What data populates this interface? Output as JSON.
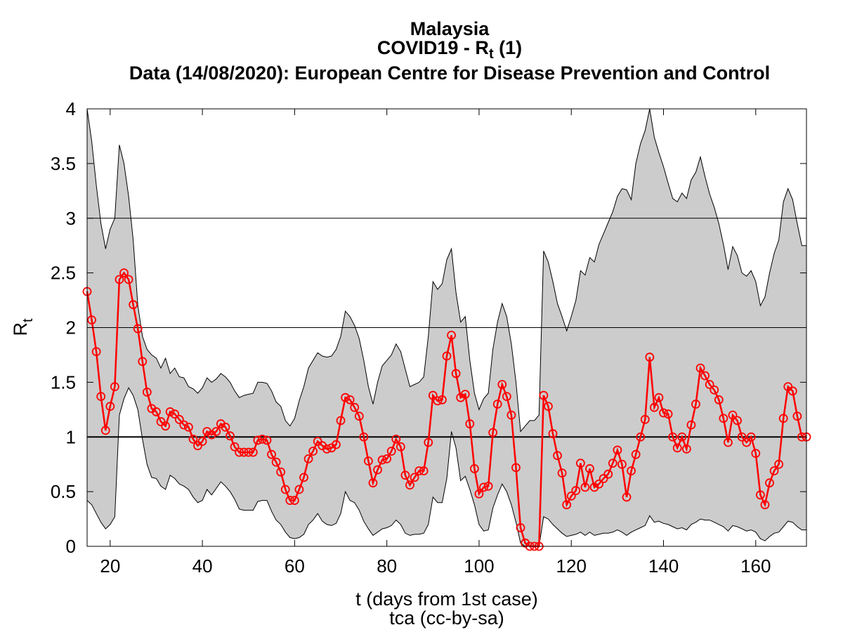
{
  "chart_data": {
    "type": "line",
    "title": "Malaysia",
    "subtitle_main": "COVID19 - R",
    "subtitle_sub": "t",
    "subtitle_tail": " (1)",
    "subtitle2": "Data (14/08/2020): European Centre for Disease Prevention and Control",
    "xlabel": "t (days from 1st case)",
    "ylabel_main": "R",
    "ylabel_sub": "t",
    "credit": "tca (cc-by-sa)",
    "xlim": [
      15,
      171
    ],
    "ylim": [
      0,
      4
    ],
    "xticks": [
      20,
      40,
      60,
      80,
      100,
      120,
      140,
      160
    ],
    "yticks": [
      0,
      0.5,
      1,
      1.5,
      2,
      2.5,
      3,
      3.5,
      4
    ],
    "ytick_labels": [
      "0",
      "0.5",
      "1",
      "1.5",
      "2",
      "2.5",
      "3",
      "3.5",
      "4"
    ],
    "hlines": [
      1,
      2,
      3
    ],
    "grid": false,
    "colors": {
      "series": "#ff0000",
      "band": "#cccccc",
      "axes": "#000000"
    },
    "x": [
      15,
      16,
      17,
      18,
      19,
      20,
      21,
      22,
      23,
      24,
      25,
      26,
      27,
      28,
      29,
      30,
      31,
      32,
      33,
      34,
      35,
      36,
      37,
      38,
      39,
      40,
      41,
      42,
      43,
      44,
      45,
      46,
      47,
      48,
      49,
      50,
      51,
      52,
      53,
      54,
      55,
      56,
      57,
      58,
      59,
      60,
      61,
      62,
      63,
      64,
      65,
      66,
      67,
      68,
      69,
      70,
      71,
      72,
      73,
      74,
      75,
      76,
      77,
      78,
      79,
      80,
      81,
      82,
      83,
      84,
      85,
      86,
      87,
      88,
      89,
      90,
      91,
      92,
      93,
      94,
      95,
      96,
      97,
      98,
      99,
      100,
      101,
      102,
      103,
      104,
      105,
      106,
      107,
      108,
      109,
      110,
      111,
      112,
      113,
      114,
      115,
      116,
      117,
      118,
      119,
      120,
      121,
      122,
      123,
      124,
      125,
      126,
      127,
      128,
      129,
      130,
      131,
      132,
      133,
      134,
      135,
      136,
      137,
      138,
      139,
      140,
      141,
      142,
      143,
      144,
      145,
      146,
      147,
      148,
      149,
      150,
      151,
      152,
      153,
      154,
      155,
      156,
      157,
      158,
      159,
      160,
      161,
      162,
      163,
      164,
      165,
      166,
      167,
      168,
      169,
      170,
      171
    ],
    "series": [
      {
        "values": [
          2.33,
          2.07,
          1.78,
          1.37,
          1.06,
          1.28,
          1.46,
          2.44,
          2.5,
          2.44,
          2.21,
          1.99,
          1.69,
          1.41,
          1.26,
          1.23,
          1.14,
          1.1,
          1.23,
          1.21,
          1.16,
          1.11,
          1.09,
          0.98,
          0.92,
          0.96,
          1.05,
          1.02,
          1.05,
          1.12,
          1.09,
          1.01,
          0.91,
          0.86,
          0.86,
          0.86,
          0.86,
          0.97,
          0.98,
          0.97,
          0.84,
          0.77,
          0.68,
          0.52,
          0.42,
          0.42,
          0.52,
          0.63,
          0.8,
          0.87,
          0.96,
          0.92,
          0.89,
          0.9,
          0.93,
          1.15,
          1.36,
          1.34,
          1.27,
          1.19,
          1.0,
          0.78,
          0.58,
          0.7,
          0.79,
          0.8,
          0.87,
          0.98,
          0.91,
          0.65,
          0.56,
          0.63,
          0.69,
          0.69,
          0.95,
          1.38,
          1.33,
          1.34,
          1.74,
          1.93,
          1.58,
          1.36,
          1.39,
          1.12,
          0.71,
          0.48,
          0.54,
          0.55,
          1.04,
          1.3,
          1.48,
          1.37,
          1.2,
          0.72,
          0.17,
          0.03,
          0.0,
          0.0,
          0.0,
          1.38,
          1.28,
          1.03,
          0.83,
          0.67,
          0.38,
          0.46,
          0.51,
          0.76,
          0.54,
          0.71,
          0.54,
          0.57,
          0.62,
          0.66,
          0.76,
          0.88,
          0.75,
          0.45,
          0.69,
          0.84,
          1.0,
          1.16,
          1.73,
          1.27,
          1.36,
          1.22,
          1.21,
          1.0,
          0.9,
          1.0,
          0.89,
          1.11,
          1.3,
          1.63,
          1.56,
          1.48,
          1.43,
          1.34,
          1.17,
          0.95,
          1.2,
          1.15,
          1.0,
          0.95,
          1.0,
          0.85,
          0.47,
          0.38,
          0.58,
          0.69,
          0.75,
          1.17,
          1.46,
          1.42,
          1.19,
          1.0,
          1.0
        ]
      }
    ],
    "band_upper": [
      4.0,
      3.7,
      3.3,
      2.95,
      2.72,
      2.9,
      3.0,
      3.67,
      3.5,
      3.2,
      2.8,
      2.2,
      1.92,
      1.8,
      1.75,
      1.72,
      1.63,
      1.72,
      1.58,
      1.63,
      1.55,
      1.54,
      1.46,
      1.44,
      1.4,
      1.45,
      1.54,
      1.5,
      1.53,
      1.58,
      1.55,
      1.5,
      1.42,
      1.36,
      1.38,
      1.39,
      1.4,
      1.5,
      1.5,
      1.49,
      1.42,
      1.32,
      1.28,
      1.15,
      1.1,
      1.17,
      1.33,
      1.46,
      1.63,
      1.7,
      1.77,
      1.74,
      1.73,
      1.74,
      1.8,
      1.92,
      2.15,
      2.1,
      2.02,
      1.9,
      1.7,
      1.46,
      1.3,
      1.5,
      1.65,
      1.7,
      1.75,
      1.85,
      1.78,
      1.62,
      1.46,
      1.48,
      1.5,
      1.55,
      1.92,
      2.42,
      2.35,
      2.4,
      2.62,
      2.72,
      2.32,
      2.05,
      2.1,
      1.7,
      1.4,
      1.25,
      1.35,
      1.4,
      1.8,
      2.05,
      2.22,
      2.1,
      1.85,
      1.5,
      1.05,
      1.1,
      1.15,
      1.15,
      1.2,
      2.7,
      2.6,
      2.42,
      2.22,
      2.1,
      1.97,
      2.1,
      2.25,
      2.52,
      2.48,
      2.64,
      2.6,
      2.76,
      2.86,
      2.96,
      3.06,
      3.2,
      3.27,
      3.26,
      3.17,
      3.5,
      3.68,
      3.8,
      4.0,
      3.74,
      3.6,
      3.47,
      3.32,
      3.18,
      3.15,
      3.23,
      3.18,
      3.35,
      3.42,
      3.56,
      3.38,
      3.22,
      3.1,
      2.95,
      2.76,
      2.53,
      2.74,
      2.66,
      2.5,
      2.47,
      2.52,
      2.42,
      2.2,
      2.28,
      2.5,
      2.68,
      2.8,
      3.15,
      3.27,
      3.17,
      2.95,
      2.75,
      2.75
    ],
    "band_lower": [
      0.42,
      0.38,
      0.3,
      0.22,
      0.16,
      0.2,
      0.27,
      1.2,
      1.35,
      1.45,
      1.38,
      1.25,
      0.98,
      0.75,
      0.63,
      0.62,
      0.55,
      0.52,
      0.65,
      0.62,
      0.57,
      0.55,
      0.52,
      0.45,
      0.4,
      0.42,
      0.52,
      0.47,
      0.53,
      0.59,
      0.55,
      0.5,
      0.43,
      0.34,
      0.33,
      0.33,
      0.33,
      0.41,
      0.42,
      0.42,
      0.32,
      0.24,
      0.2,
      0.13,
      0.08,
      0.07,
      0.08,
      0.11,
      0.2,
      0.24,
      0.3,
      0.23,
      0.2,
      0.19,
      0.21,
      0.3,
      0.5,
      0.42,
      0.4,
      0.33,
      0.23,
      0.16,
      0.1,
      0.13,
      0.16,
      0.17,
      0.19,
      0.24,
      0.2,
      0.12,
      0.1,
      0.11,
      0.11,
      0.12,
      0.2,
      0.45,
      0.4,
      0.4,
      0.62,
      1.05,
      0.9,
      0.6,
      0.64,
      0.52,
      0.38,
      0.2,
      0.14,
      0.15,
      0.35,
      0.47,
      0.57,
      0.5,
      0.38,
      0.22,
      0.03,
      0.0,
      0.0,
      0.0,
      0.0,
      0.27,
      0.25,
      0.2,
      0.16,
      0.12,
      0.09,
      0.1,
      0.11,
      0.13,
      0.1,
      0.13,
      0.1,
      0.11,
      0.12,
      0.12,
      0.13,
      0.15,
      0.13,
      0.1,
      0.13,
      0.15,
      0.17,
      0.19,
      0.28,
      0.22,
      0.23,
      0.21,
      0.2,
      0.18,
      0.16,
      0.17,
      0.15,
      0.2,
      0.22,
      0.25,
      0.24,
      0.24,
      0.22,
      0.2,
      0.18,
      0.14,
      0.19,
      0.18,
      0.16,
      0.14,
      0.15,
      0.13,
      0.07,
      0.05,
      0.09,
      0.12,
      0.13,
      0.18,
      0.23,
      0.22,
      0.18,
      0.15,
      0.15
    ]
  }
}
